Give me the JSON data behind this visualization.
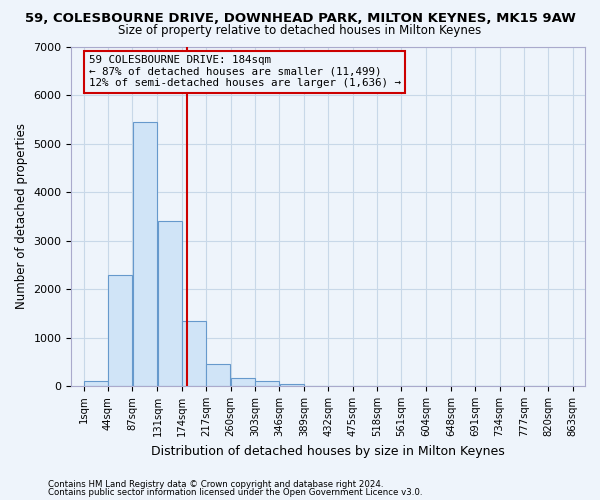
{
  "title": "59, COLESBOURNE DRIVE, DOWNHEAD PARK, MILTON KEYNES, MK15 9AW",
  "subtitle": "Size of property relative to detached houses in Milton Keynes",
  "xlabel": "Distribution of detached houses by size in Milton Keynes",
  "ylabel": "Number of detached properties",
  "footer_line1": "Contains HM Land Registry data © Crown copyright and database right 2024.",
  "footer_line2": "Contains public sector information licensed under the Open Government Licence v3.0.",
  "annotation_line1": "59 COLESBOURNE DRIVE: 184sqm",
  "annotation_line2": "← 87% of detached houses are smaller (11,499)",
  "annotation_line3": "12% of semi-detached houses are larger (1,636) →",
  "property_size": 184,
  "bin_edges": [
    1,
    44,
    87,
    131,
    174,
    217,
    260,
    303,
    346,
    389,
    432,
    475,
    518,
    561,
    604,
    648,
    691,
    734,
    777,
    820,
    863
  ],
  "bar_values": [
    100,
    2280,
    5450,
    3400,
    1350,
    450,
    175,
    100,
    50,
    0,
    0,
    0,
    0,
    0,
    0,
    0,
    0,
    0,
    0,
    0
  ],
  "bar_color": "#d0e4f7",
  "bar_edge_color": "#6699cc",
  "grid_color": "#c8d8e8",
  "redline_color": "#cc0000",
  "annotation_box_edge": "#cc0000",
  "bg_color": "#eef4fb",
  "ylim": [
    0,
    7000
  ],
  "yticks": [
    0,
    1000,
    2000,
    3000,
    4000,
    5000,
    6000,
    7000
  ]
}
